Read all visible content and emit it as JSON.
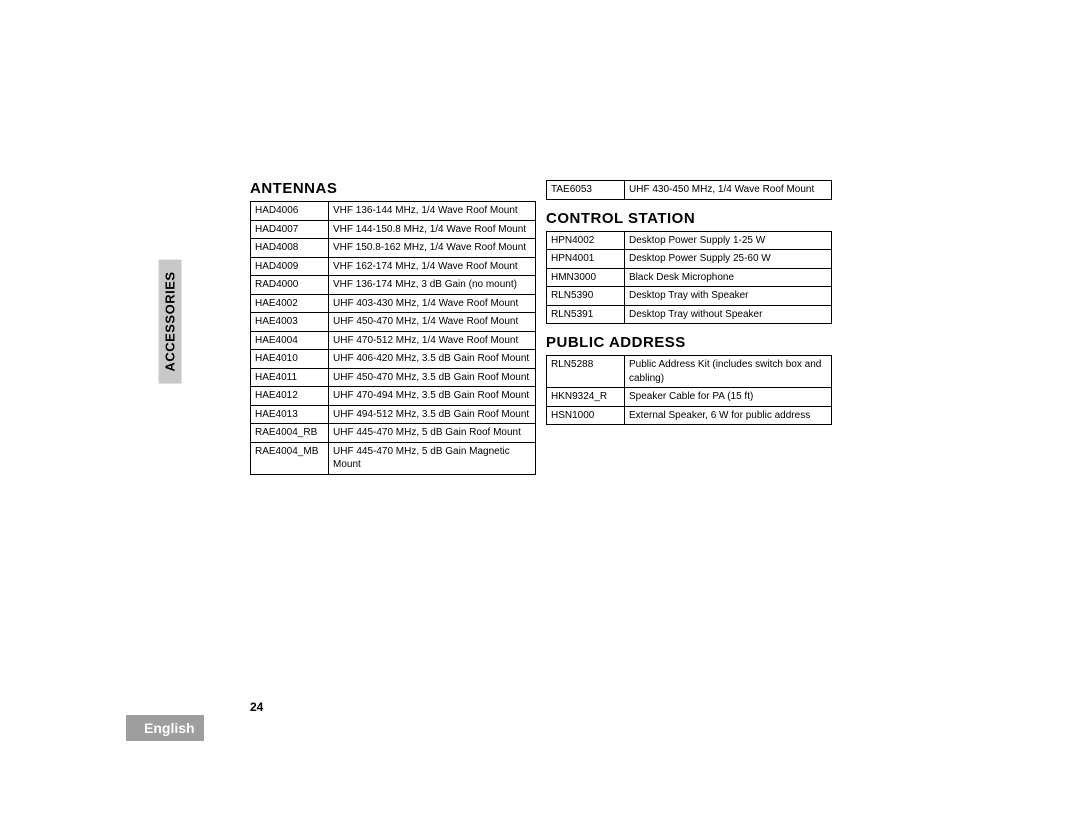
{
  "sidebar": {
    "tab_label": "ACCESSORIES"
  },
  "footer": {
    "page_number": "24",
    "language": "English"
  },
  "colors": {
    "page_bg": "#ffffff",
    "tab_bg": "#c8c8c8",
    "tab_text": "#000000",
    "lang_bg": "#9e9e9e",
    "lang_text": "#ffffff",
    "border": "#000000"
  },
  "typography": {
    "section_title_fontsize_pt": 15,
    "table_fontsize_pt": 10,
    "font_family": "Arial"
  },
  "sections": {
    "antennas": {
      "title": "ANTENNAS",
      "rows": [
        {
          "code": "HAD4006",
          "desc": "VHF 136-144 MHz, 1/4 Wave Roof Mount"
        },
        {
          "code": "HAD4007",
          "desc": "VHF 144-150.8 MHz, 1/4 Wave Roof Mount"
        },
        {
          "code": "HAD4008",
          "desc": "VHF 150.8-162 MHz, 1/4 Wave Roof Mount"
        },
        {
          "code": "HAD4009",
          "desc": "VHF 162-174 MHz, 1/4 Wave Roof Mount"
        },
        {
          "code": "RAD4000",
          "desc": "VHF 136-174 MHz, 3 dB Gain (no mount)"
        },
        {
          "code": "HAE4002",
          "desc": "UHF 403-430 MHz, 1/4 Wave Roof Mount"
        },
        {
          "code": "HAE4003",
          "desc": "UHF 450-470 MHz, 1/4 Wave Roof Mount"
        },
        {
          "code": "HAE4004",
          "desc": "UHF 470-512 MHz, 1/4 Wave Roof Mount"
        },
        {
          "code": "HAE4010",
          "desc": "UHF 406-420 MHz, 3.5 dB Gain Roof Mount"
        },
        {
          "code": "HAE4011",
          "desc": "UHF 450-470 MHz, 3.5 dB Gain Roof Mount"
        },
        {
          "code": "HAE4012",
          "desc": "UHF 470-494 MHz, 3.5 dB Gain Roof Mount"
        },
        {
          "code": "HAE4013",
          "desc": "UHF 494-512 MHz, 3.5 dB Gain Roof Mount"
        },
        {
          "code": "RAE4004_RB",
          "desc": "UHF 445-470 MHz, 5 dB Gain Roof Mount"
        },
        {
          "code": "RAE4004_MB",
          "desc": "UHF 445-470 MHz, 5 dB Gain Magnetic Mount"
        }
      ]
    },
    "antennas_cont": {
      "rows": [
        {
          "code": "TAE6053",
          "desc": "UHF 430-450 MHz, 1/4 Wave Roof Mount"
        }
      ]
    },
    "control_station": {
      "title": "CONTROL STATION",
      "rows": [
        {
          "code": "HPN4002",
          "desc": "Desktop Power Supply 1-25 W"
        },
        {
          "code": "HPN4001",
          "desc": "Desktop Power Supply 25-60 W"
        },
        {
          "code": "HMN3000",
          "desc": "Black Desk Microphone"
        },
        {
          "code": "RLN5390",
          "desc": "Desktop Tray with Speaker"
        },
        {
          "code": "RLN5391",
          "desc": "Desktop Tray without Speaker"
        }
      ]
    },
    "public_address": {
      "title": "PUBLIC ADDRESS",
      "rows": [
        {
          "code": "RLN5288",
          "desc": "Public Address Kit (includes switch box and cabling)"
        },
        {
          "code": "HKN9324_R",
          "desc": "Speaker Cable for PA (15 ft)"
        },
        {
          "code": "HSN1000",
          "desc": "External Speaker, 6 W for public address"
        }
      ]
    }
  }
}
